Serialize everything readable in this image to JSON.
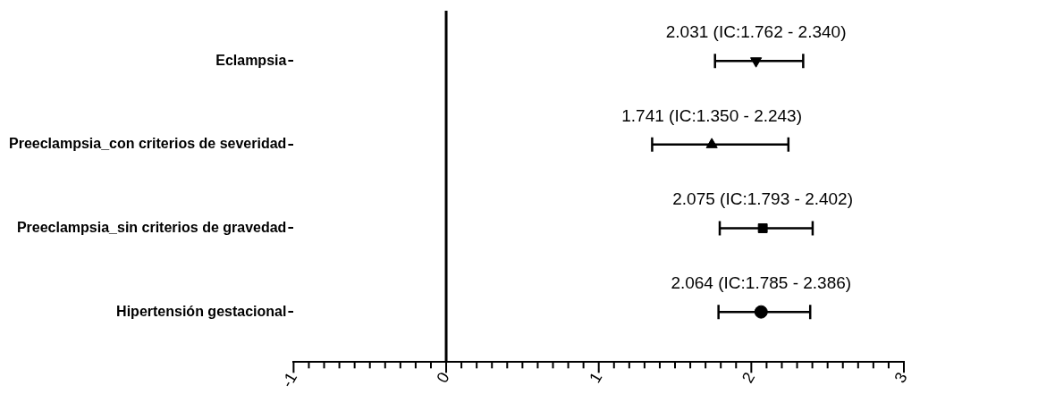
{
  "chart_data": {
    "type": "scatter",
    "orientation": "horizontal",
    "categories": [
      "Eclampsia",
      "Preeclampsia_con criterios de severidad",
      "Preeclampsia_sin criterios de gravedad",
      "Hipertensión gestacional"
    ],
    "series": [
      {
        "color": "#000000",
        "marker": "triangle-down",
        "values": [
          2.031,
          null,
          null,
          null
        ],
        "errors": [
          [
            1.762,
            2.34
          ],
          null,
          null,
          null
        ]
      },
      {
        "color": "#000000",
        "marker": "triangle",
        "values": [
          null,
          1.741,
          null,
          null
        ],
        "errors": [
          null,
          [
            1.35,
            2.243
          ],
          null,
          null
        ]
      },
      {
        "color": "#000000",
        "marker": "square",
        "values": [
          null,
          null,
          2.075,
          null
        ],
        "errors": [
          null,
          null,
          [
            1.793,
            2.402
          ],
          null
        ]
      },
      {
        "color": "#000000",
        "marker": "circle",
        "values": [
          null,
          null,
          null,
          2.064
        ],
        "errors": [
          null,
          null,
          null,
          [
            1.785,
            2.386
          ]
        ]
      }
    ],
    "xlim": [
      -1,
      3
    ],
    "xticks": [
      -1,
      {
        "value": -0.9,
        "label": null
      },
      {
        "value": -0.8,
        "label": null
      },
      {
        "value": -0.7,
        "label": null
      },
      {
        "value": -0.6,
        "label": null
      },
      {
        "value": -0.5,
        "label": null
      },
      {
        "value": -0.4,
        "label": null
      },
      {
        "value": -0.3,
        "label": null
      },
      {
        "value": -0.2,
        "label": null
      },
      {
        "value": -0.1,
        "label": null
      },
      0,
      {
        "value": 0.1,
        "label": null
      },
      {
        "value": 0.2,
        "label": null
      },
      {
        "value": 0.3,
        "label": null
      },
      {
        "value": 0.4,
        "label": null
      },
      {
        "value": 0.5,
        "label": null
      },
      {
        "value": 0.6,
        "label": null
      },
      {
        "value": 0.7,
        "label": null
      },
      {
        "value": 0.8,
        "label": null
      },
      {
        "value": 0.9,
        "label": null
      },
      1,
      {
        "value": 1.1,
        "label": null
      },
      {
        "value": 1.2,
        "label": null
      },
      {
        "value": 1.3,
        "label": null
      },
      {
        "value": 1.4,
        "label": null
      },
      {
        "value": 1.5,
        "label": null
      },
      {
        "value": 1.6,
        "label": null
      },
      {
        "value": 1.7,
        "label": null
      },
      {
        "value": 1.8,
        "label": null
      },
      {
        "value": 1.9,
        "label": null
      },
      2,
      {
        "value": 2.1,
        "label": null
      },
      {
        "value": 2.2,
        "label": null
      },
      {
        "value": 2.3,
        "label": null
      },
      {
        "value": 2.4,
        "label": null
      },
      {
        "value": 2.5,
        "label": null
      },
      {
        "value": 2.6,
        "label": null
      },
      {
        "value": 2.7,
        "label": null
      },
      {
        "value": 2.8,
        "label": null
      },
      {
        "value": 2.9,
        "label": null
      },
      3
    ],
    "ref_lines": [
      {
        "axis": "x",
        "value": 0,
        "color": "#000000"
      }
    ],
    "annotations": [
      {
        "text": "2.031 (IC:1.762 - 2.340)",
        "x": 2.031,
        "y": "Eclampsia"
      },
      {
        "text": "1.741 (IC:1.350 - 2.243)",
        "x": 1.741,
        "y": "Preeclampsia_con criterios de severidad"
      },
      {
        "text": "2.075 (IC:1.793 - 2.402)",
        "x": 2.075,
        "y": "Preeclampsia_sin criterios de gravedad"
      },
      {
        "text": "2.064 (IC:1.785 - 2.386)",
        "x": 2.064,
        "y": "Hipertensión gestacional"
      }
    ],
    "grid": false,
    "legend": false
  }
}
